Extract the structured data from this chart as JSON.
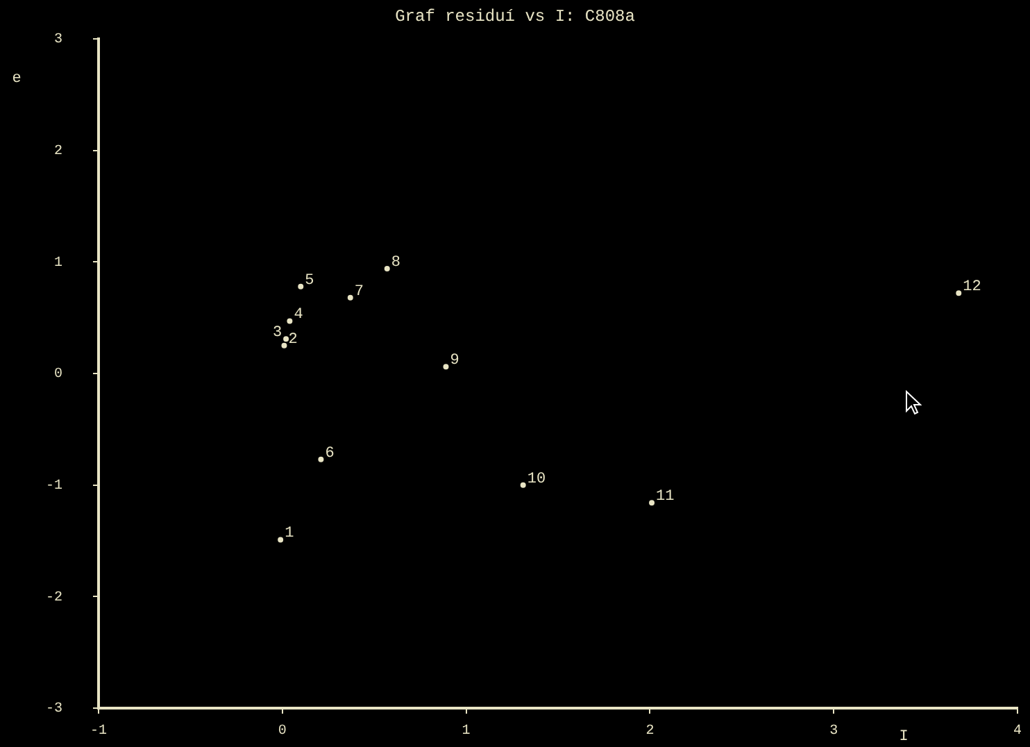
{
  "chart_data": {
    "type": "scatter",
    "title": "Graf residuí vs I: C808a",
    "xlabel": "I",
    "ylabel": "e",
    "x": [
      -0.01,
      0.01,
      0.02,
      0.04,
      0.1,
      0.21,
      0.37,
      0.57,
      0.89,
      1.31,
      2.01,
      3.68
    ],
    "series": [
      {
        "color": "#e8e4c4",
        "values": [
          -1.49,
          0.25,
          0.31,
          0.47,
          0.78,
          -0.77,
          0.68,
          0.94,
          0.06,
          -1.0,
          -1.16,
          0.72
        ]
      }
    ],
    "annotations": [
      {
        "text": "1",
        "x": -0.01,
        "y": -1.49
      },
      {
        "text": "2",
        "x": 0.01,
        "y": 0.25
      },
      {
        "text": "3",
        "x": 0.02,
        "y": 0.31
      },
      {
        "text": "4",
        "x": 0.04,
        "y": 0.47
      },
      {
        "text": "5",
        "x": 0.1,
        "y": 0.78
      },
      {
        "text": "6",
        "x": 0.21,
        "y": -0.77
      },
      {
        "text": "7",
        "x": 0.37,
        "y": 0.68
      },
      {
        "text": "8",
        "x": 0.57,
        "y": 0.94
      },
      {
        "text": "9",
        "x": 0.89,
        "y": 0.06
      },
      {
        "text": "10",
        "x": 1.31,
        "y": -1.0
      },
      {
        "text": "11",
        "x": 2.01,
        "y": -1.16
      },
      {
        "text": "12",
        "x": 3.68,
        "y": 0.72
      }
    ],
    "xlim": [
      -1,
      4
    ],
    "xticks": [
      -1,
      0,
      1,
      2,
      3,
      4
    ],
    "ylim": [
      -3,
      3
    ],
    "yticks": [
      -3,
      -2,
      -1,
      0,
      1,
      2,
      3
    ],
    "grid": false,
    "legend": false,
    "marker": "circle"
  }
}
